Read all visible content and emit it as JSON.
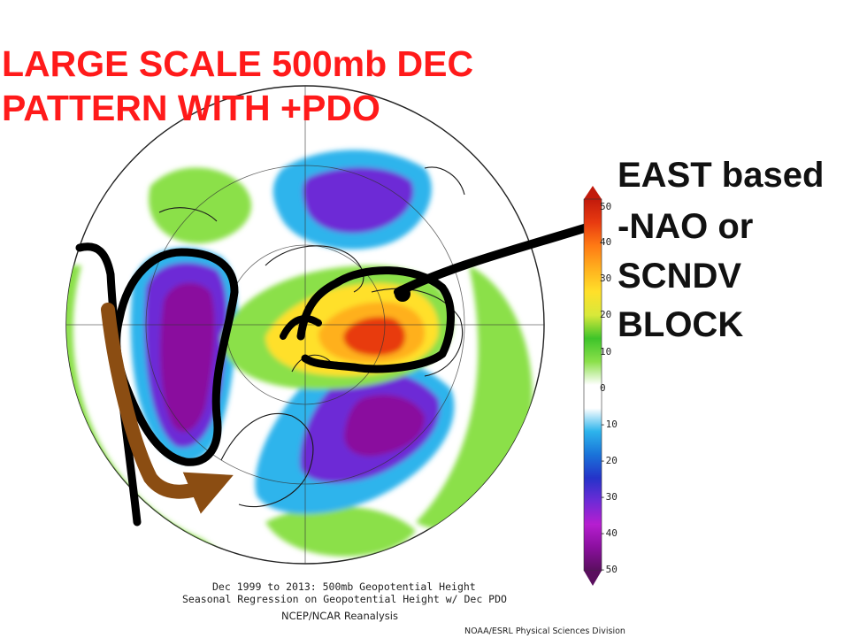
{
  "headline": {
    "line1": "LARGE SCALE 500mb DEC",
    "line2": "PATTERN WITH +PDO"
  },
  "annotation": {
    "lines": [
      "EAST based",
      "-NAO or",
      "SCNDV",
      "BLOCK"
    ]
  },
  "map": {
    "caption_line1": "Dec 1999 to 2013: 500mb Geopotential Height",
    "caption_line2": "Seasonal Regression on Geopotential Height  w/ Dec PDO",
    "source": "NCEP/NCAR Reanalysis",
    "credit": "NOAA/ESRL Physical Sciences Division"
  },
  "colorbar": {
    "labels": [
      "50",
      "40",
      "30",
      "20",
      "10",
      "0",
      "-10",
      "-20",
      "-30",
      "-40",
      "-50"
    ],
    "colors": [
      "#5a0f5e",
      "#8a0f9e",
      "#b61ed0",
      "#6d2bd6",
      "#2433c9",
      "#1a73d9",
      "#2db4ec",
      "#ffffff",
      "#ffffff",
      "#8be04a",
      "#3ec42a",
      "#d8e83a",
      "#ffe02a",
      "#ffb01e",
      "#ff7a14",
      "#e83a10",
      "#c21a0c"
    ]
  },
  "drawn_marks": {
    "black_outline_color": "#000000",
    "brown_arrow_color": "#8b4d12"
  }
}
